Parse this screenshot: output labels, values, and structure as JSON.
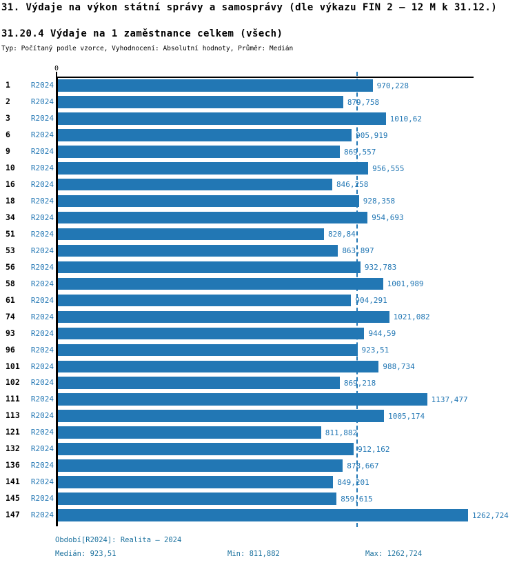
{
  "title": "31. Výdaje na výkon státní správy a samosprávy (dle výkazu FIN 2 – 12 M k 31.12.)",
  "subtitle": "31.20.4 Výdaje na 1 zaměstnance celkem (všech)",
  "meta": "Typ: Počítaný podle vzorce, Vyhodnocení: Absolutní hodnoty, Průměr: Medián",
  "colors": {
    "bar": "#2277b4",
    "value_text": "#2277b4",
    "series_text": "#2277b4",
    "footer_text": "#1b719e",
    "axis": "#000000",
    "median_line": "#2277b4"
  },
  "chart_data": {
    "type": "bar",
    "orientation": "horizontal",
    "x_zero_label": "0",
    "series_label": "R2024",
    "categories": [
      "1",
      "2",
      "3",
      "6",
      "9",
      "10",
      "16",
      "18",
      "34",
      "51",
      "53",
      "56",
      "58",
      "61",
      "74",
      "93",
      "96",
      "101",
      "102",
      "111",
      "113",
      "121",
      "132",
      "136",
      "141",
      "145",
      "147"
    ],
    "values": [
      970.228,
      879.758,
      1010.62,
      905.919,
      869.557,
      956.555,
      846.258,
      928.358,
      954.693,
      820.84,
      863.897,
      932.783,
      1001.989,
      904.291,
      1021.082,
      944.59,
      923.51,
      988.734,
      869.218,
      1137.477,
      1005.174,
      811.882,
      912.162,
      878.667,
      849.201,
      859.615,
      1262.724
    ],
    "value_labels": [
      "970,228",
      "879,758",
      "1010,62",
      "905,919",
      "869,557",
      "956,555",
      "846,258",
      "928,358",
      "954,693",
      "820,84",
      "863,897",
      "932,783",
      "1001,989",
      "904,291",
      "1021,082",
      "944,59",
      "923,51",
      "988,734",
      "869,218",
      "1137,477",
      "1005,174",
      "811,882",
      "912,162",
      "878,667",
      "849,201",
      "859,615",
      "1262,724"
    ],
    "median": 923.51,
    "min": 811.882,
    "max": 1262.724,
    "xlim": [
      0,
      1280
    ],
    "grid": false,
    "legend": "none",
    "median_line": true
  },
  "footer": {
    "period": "Období[R2024]: Realita – 2024",
    "median": "Medián: 923,51",
    "min": "Min: 811,882",
    "max": "Max: 1262,724"
  }
}
